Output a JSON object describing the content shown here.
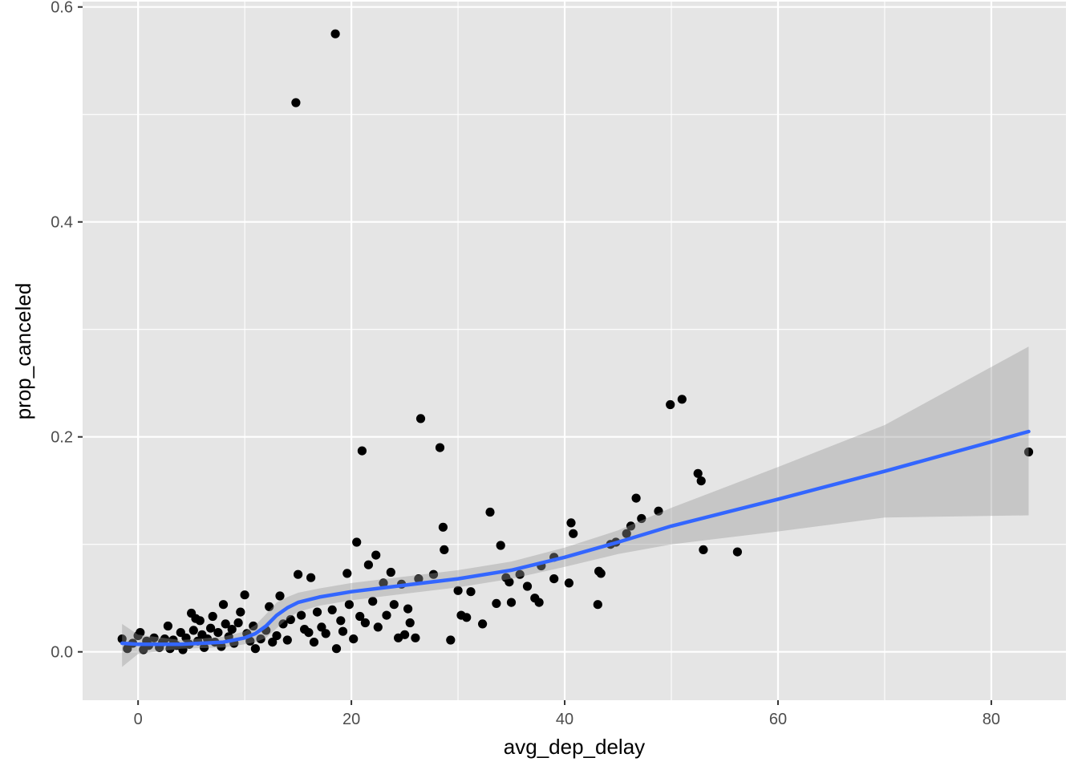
{
  "chart_data": {
    "type": "scatter",
    "title": "",
    "xlabel": "avg_dep_delay",
    "ylabel": "prop_canceled",
    "xlim": [
      -5.2,
      87.0
    ],
    "ylim": [
      -0.045,
      0.605
    ],
    "x_ticks": [
      0,
      20,
      40,
      60,
      80
    ],
    "x_tick_labels": [
      "0",
      "20",
      "40",
      "60",
      "80"
    ],
    "y_ticks": [
      0.0,
      0.2,
      0.4,
      0.6
    ],
    "y_tick_labels": [
      "0.0",
      "0.2",
      "0.4",
      "0.6"
    ],
    "grid": true,
    "legend": "none",
    "colors": {
      "panel": "#e5e5e5",
      "grid": "#ffffff",
      "points": "#000000",
      "smooth_line": "#3366ff",
      "confidence_band": "#999999"
    },
    "points": [
      [
        -1.5,
        0.012
      ],
      [
        -1.0,
        0.003
      ],
      [
        -0.5,
        0.008
      ],
      [
        0.0,
        0.015
      ],
      [
        0.2,
        0.018
      ],
      [
        0.5,
        0.002
      ],
      [
        0.8,
        0.01
      ],
      [
        1.0,
        0.006
      ],
      [
        1.5,
        0.013
      ],
      [
        2.0,
        0.004
      ],
      [
        2.3,
        0.009
      ],
      [
        2.5,
        0.012
      ],
      [
        2.8,
        0.024
      ],
      [
        3.0,
        0.003
      ],
      [
        3.3,
        0.011
      ],
      [
        3.6,
        0.006
      ],
      [
        4.0,
        0.018
      ],
      [
        4.2,
        0.002
      ],
      [
        4.5,
        0.013
      ],
      [
        4.8,
        0.007
      ],
      [
        5.0,
        0.036
      ],
      [
        5.2,
        0.02
      ],
      [
        5.4,
        0.031
      ],
      [
        5.6,
        0.01
      ],
      [
        5.8,
        0.029
      ],
      [
        6.0,
        0.016
      ],
      [
        6.2,
        0.004
      ],
      [
        6.5,
        0.012
      ],
      [
        6.8,
        0.022
      ],
      [
        7.0,
        0.033
      ],
      [
        7.2,
        0.009
      ],
      [
        7.5,
        0.018
      ],
      [
        7.8,
        0.005
      ],
      [
        8.0,
        0.044
      ],
      [
        8.2,
        0.026
      ],
      [
        8.5,
        0.014
      ],
      [
        8.8,
        0.021
      ],
      [
        9.0,
        0.008
      ],
      [
        9.4,
        0.027
      ],
      [
        9.6,
        0.037
      ],
      [
        10.0,
        0.053
      ],
      [
        10.2,
        0.017
      ],
      [
        10.5,
        0.01
      ],
      [
        10.8,
        0.024
      ],
      [
        11.0,
        0.003
      ],
      [
        11.5,
        0.012
      ],
      [
        12.0,
        0.02
      ],
      [
        12.3,
        0.042
      ],
      [
        12.6,
        0.009
      ],
      [
        13.0,
        0.015
      ],
      [
        13.3,
        0.052
      ],
      [
        13.6,
        0.026
      ],
      [
        14.0,
        0.011
      ],
      [
        14.3,
        0.03
      ],
      [
        14.8,
        0.511
      ],
      [
        15.0,
        0.072
      ],
      [
        15.3,
        0.034
      ],
      [
        15.6,
        0.021
      ],
      [
        16.0,
        0.018
      ],
      [
        16.2,
        0.069
      ],
      [
        16.5,
        0.009
      ],
      [
        16.8,
        0.037
      ],
      [
        17.2,
        0.023
      ],
      [
        17.6,
        0.017
      ],
      [
        18.2,
        0.039
      ],
      [
        18.5,
        0.575
      ],
      [
        18.6,
        0.003
      ],
      [
        19.0,
        0.029
      ],
      [
        19.2,
        0.019
      ],
      [
        19.6,
        0.073
      ],
      [
        19.8,
        0.044
      ],
      [
        20.2,
        0.012
      ],
      [
        20.5,
        0.102
      ],
      [
        20.8,
        0.033
      ],
      [
        21.0,
        0.187
      ],
      [
        21.3,
        0.027
      ],
      [
        21.6,
        0.081
      ],
      [
        22.0,
        0.047
      ],
      [
        22.3,
        0.09
      ],
      [
        22.5,
        0.023
      ],
      [
        23.0,
        0.064
      ],
      [
        23.3,
        0.034
      ],
      [
        23.7,
        0.074
      ],
      [
        24.0,
        0.044
      ],
      [
        24.4,
        0.013
      ],
      [
        24.7,
        0.063
      ],
      [
        25.0,
        0.016
      ],
      [
        25.3,
        0.04
      ],
      [
        25.5,
        0.027
      ],
      [
        26.0,
        0.013
      ],
      [
        26.3,
        0.068
      ],
      [
        26.5,
        0.217
      ],
      [
        27.7,
        0.072
      ],
      [
        28.3,
        0.19
      ],
      [
        28.6,
        0.116
      ],
      [
        28.7,
        0.095
      ],
      [
        29.3,
        0.011
      ],
      [
        30.0,
        0.057
      ],
      [
        30.3,
        0.034
      ],
      [
        30.8,
        0.032
      ],
      [
        31.2,
        0.056
      ],
      [
        32.3,
        0.026
      ],
      [
        33.0,
        0.13
      ],
      [
        33.6,
        0.045
      ],
      [
        34.0,
        0.099
      ],
      [
        34.5,
        0.069
      ],
      [
        34.8,
        0.065
      ],
      [
        35.0,
        0.046
      ],
      [
        35.8,
        0.072
      ],
      [
        36.5,
        0.061
      ],
      [
        37.2,
        0.05
      ],
      [
        37.6,
        0.046
      ],
      [
        37.8,
        0.08
      ],
      [
        39.0,
        0.088
      ],
      [
        39.0,
        0.068
      ],
      [
        40.4,
        0.064
      ],
      [
        40.6,
        0.12
      ],
      [
        40.8,
        0.11
      ],
      [
        43.1,
        0.044
      ],
      [
        43.2,
        0.075
      ],
      [
        43.4,
        0.073
      ],
      [
        44.3,
        0.1
      ],
      [
        44.8,
        0.102
      ],
      [
        45.8,
        0.11
      ],
      [
        46.2,
        0.117
      ],
      [
        46.7,
        0.143
      ],
      [
        47.2,
        0.124
      ],
      [
        48.8,
        0.131
      ],
      [
        49.9,
        0.23
      ],
      [
        51.0,
        0.235
      ],
      [
        52.5,
        0.166
      ],
      [
        52.8,
        0.159
      ],
      [
        53.0,
        0.095
      ],
      [
        56.2,
        0.093
      ],
      [
        83.5,
        0.186
      ]
    ],
    "smooth_line": [
      [
        -1.5,
        0.008
      ],
      [
        0,
        0.007
      ],
      [
        4,
        0.007
      ],
      [
        8,
        0.009
      ],
      [
        10,
        0.013
      ],
      [
        11,
        0.017
      ],
      [
        12,
        0.024
      ],
      [
        13,
        0.034
      ],
      [
        14,
        0.041
      ],
      [
        15,
        0.046
      ],
      [
        17,
        0.051
      ],
      [
        20,
        0.056
      ],
      [
        25,
        0.062
      ],
      [
        30,
        0.068
      ],
      [
        35,
        0.076
      ],
      [
        40,
        0.088
      ],
      [
        45,
        0.102
      ],
      [
        50,
        0.117
      ],
      [
        60,
        0.142
      ],
      [
        70,
        0.168
      ],
      [
        83.5,
        0.205
      ]
    ],
    "confidence_band_lower": [
      [
        -1.5,
        -0.014
      ],
      [
        0,
        -0.002
      ],
      [
        4,
        0.003
      ],
      [
        8,
        0.004
      ],
      [
        10,
        0.007
      ],
      [
        11,
        0.009
      ],
      [
        12,
        0.013
      ],
      [
        13,
        0.022
      ],
      [
        14,
        0.031
      ],
      [
        15,
        0.037
      ],
      [
        17,
        0.043
      ],
      [
        20,
        0.048
      ],
      [
        25,
        0.054
      ],
      [
        30,
        0.06
      ],
      [
        35,
        0.068
      ],
      [
        40,
        0.079
      ],
      [
        45,
        0.091
      ],
      [
        50,
        0.1
      ],
      [
        60,
        0.112
      ],
      [
        70,
        0.125
      ],
      [
        83.5,
        0.127
      ]
    ],
    "confidence_band_upper": [
      [
        -1.5,
        0.026
      ],
      [
        0,
        0.016
      ],
      [
        4,
        0.011
      ],
      [
        8,
        0.014
      ],
      [
        10,
        0.019
      ],
      [
        11,
        0.025
      ],
      [
        12,
        0.035
      ],
      [
        13,
        0.046
      ],
      [
        14,
        0.051
      ],
      [
        15,
        0.055
      ],
      [
        17,
        0.059
      ],
      [
        20,
        0.064
      ],
      [
        25,
        0.07
      ],
      [
        30,
        0.076
      ],
      [
        35,
        0.084
      ],
      [
        40,
        0.097
      ],
      [
        45,
        0.113
      ],
      [
        50,
        0.134
      ],
      [
        60,
        0.172
      ],
      [
        70,
        0.211
      ],
      [
        83.5,
        0.284
      ]
    ]
  }
}
